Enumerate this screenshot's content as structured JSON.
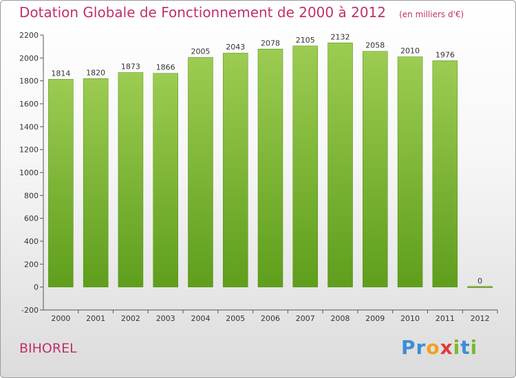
{
  "title": "Dotation Globale de Fonctionnement de 2000 à 2012",
  "unit_note": "(en milliers d'€)",
  "entity": "BIHOREL",
  "logo": {
    "letters": [
      "P",
      "r",
      "o",
      "x",
      "i",
      "t",
      "i"
    ],
    "colors": [
      "#3b8fd4",
      "#3b8fd4",
      "#f0a020",
      "#e03a3a",
      "#7cb82f",
      "#3b8fd4",
      "#7cb82f"
    ]
  },
  "colors": {
    "bar_top": "#9ccc52",
    "bar_bottom": "#5f9e1c",
    "title": "#c0306b",
    "axis_text": "#333333"
  },
  "chart_data": {
    "type": "bar",
    "categories": [
      "2000",
      "2001",
      "2002",
      "2003",
      "2004",
      "2005",
      "2006",
      "2007",
      "2008",
      "2009",
      "2010",
      "2011",
      "2012"
    ],
    "values": [
      1814,
      1820,
      1873,
      1866,
      2005,
      2043,
      2078,
      2105,
      2132,
      2058,
      2010,
      1976,
      0
    ],
    "ylim": [
      -200,
      2200
    ],
    "yticks": [
      -200,
      0,
      200,
      400,
      600,
      800,
      1000,
      1200,
      1400,
      1600,
      1800,
      2000,
      2200
    ],
    "grid": false,
    "legend": "none"
  }
}
